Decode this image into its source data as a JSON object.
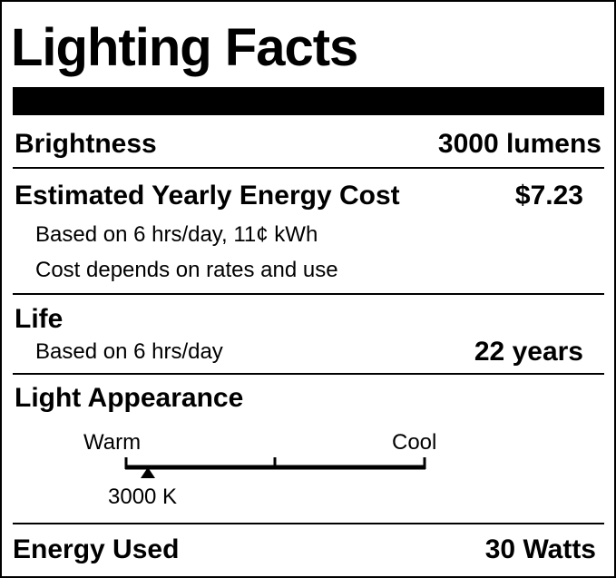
{
  "header": {
    "title": "Lighting Facts"
  },
  "brightness": {
    "label": "Brightness",
    "value": "3000 lumens"
  },
  "cost": {
    "label": "Estimated Yearly Energy Cost",
    "value": "$7.23",
    "notes": [
      "Based on 6 hrs/day, 11¢ kWh",
      "Cost depends on rates and use"
    ]
  },
  "life": {
    "label": "Life",
    "note": "Based on 6 hrs/day",
    "value": "22 years"
  },
  "appearance": {
    "label": "Light Appearance",
    "scale_start": "Warm",
    "scale_end": "Cool",
    "marker": "3000 K"
  },
  "energy": {
    "label": "Energy Used",
    "value": "30 Watts"
  }
}
